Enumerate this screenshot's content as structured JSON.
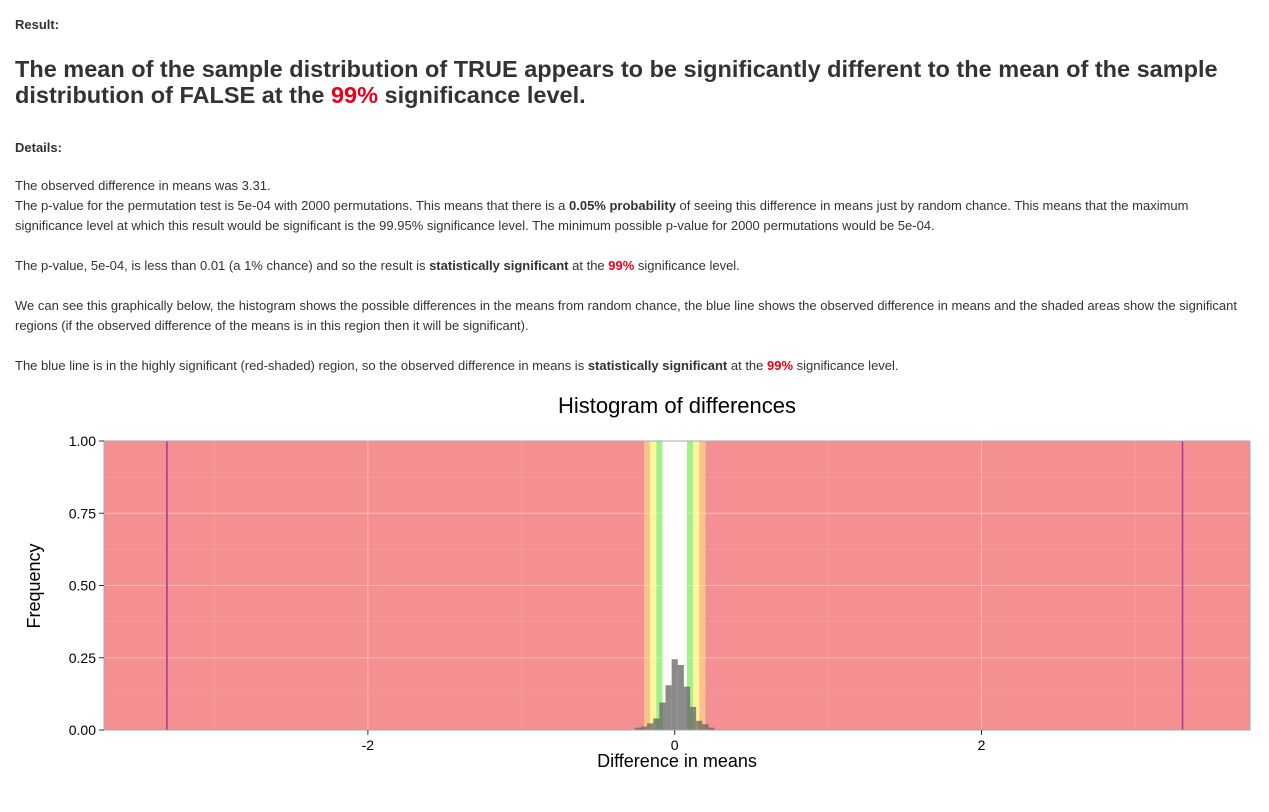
{
  "result": {
    "label": "Result:",
    "headline": {
      "part1": "The mean of the sample distribution of TRUE appears to be ",
      "emphasis": "significantly different",
      "part2": " to the mean of the sample distribution of FALSE at the ",
      "level": "99%",
      "part3": " significance level."
    }
  },
  "details": {
    "label": "Details:",
    "p1": {
      "line1": "The observed difference in means was 3.31.",
      "a": "The p-value for the permutation test is 5e-04 with 2000 permutations. This means that there is a ",
      "b": "0.05% probability",
      "c": " of seeing this difference in means just by random chance. This means that the maximum significance level at which this result would be significant is the 99.95% significance level. The minimum possible p-value for 2000 permutations would be 5e-04."
    },
    "p2": {
      "a": "The p-value, 5e-04, is less than 0.01 (a 1% chance) and so the result is ",
      "b": "statistically significant",
      "c": " at the ",
      "level": "99%",
      "d": " significance level."
    },
    "p3": "We can see this graphically below, the histogram shows the possible differences in the means from random chance, the blue line shows the observed difference in means and the shaded areas show the significant regions (if the observed difference of the means is in this region then it will be significant).",
    "p4": {
      "a": "The blue line is in the highly significant (red-shaded) region, so the observed difference in means is ",
      "b": "statistically significant",
      "c": " at the ",
      "level": "99%",
      "d": " significance level."
    }
  },
  "colors": {
    "accent_red": "#e8001c",
    "region_red": "#f59092",
    "region_orange": "#fdc18a",
    "region_yellow": "#fdf79a",
    "region_green": "#a2f08a",
    "observed_line": "#b0359c",
    "histogram_bar": "#636363"
  },
  "chart_data": {
    "type": "bar",
    "title": "Histogram of differences",
    "xlabel": "Difference in means",
    "ylabel": "Frequency",
    "xlim": [
      -3.72,
      3.75
    ],
    "ylim": [
      0,
      1
    ],
    "x_ticks": [
      -2,
      0,
      2
    ],
    "x_tick_labels": [
      "-2",
      "0",
      "2"
    ],
    "y_ticks": [
      0,
      0.25,
      0.5,
      0.75,
      1
    ],
    "y_tick_labels": [
      "0.00",
      "0.25",
      "0.50",
      "0.75",
      "1.00"
    ],
    "grid": true,
    "bin_width": 0.04,
    "bins": [
      {
        "x": -0.24,
        "freq": 0.008
      },
      {
        "x": -0.2,
        "freq": 0.012
      },
      {
        "x": -0.16,
        "freq": 0.023
      },
      {
        "x": -0.12,
        "freq": 0.04
      },
      {
        "x": -0.08,
        "freq": 0.095
      },
      {
        "x": -0.04,
        "freq": 0.155
      },
      {
        "x": 0.0,
        "freq": 0.245
      },
      {
        "x": 0.04,
        "freq": 0.225
      },
      {
        "x": 0.08,
        "freq": 0.15
      },
      {
        "x": 0.12,
        "freq": 0.08
      },
      {
        "x": 0.16,
        "freq": 0.032
      },
      {
        "x": 0.2,
        "freq": 0.02
      },
      {
        "x": 0.24,
        "freq": 0.008
      }
    ],
    "regions": [
      {
        "name": "red",
        "from": -3.72,
        "to": -0.2
      },
      {
        "name": "orange",
        "from": -0.2,
        "to": -0.16
      },
      {
        "name": "yellow",
        "from": -0.16,
        "to": -0.12
      },
      {
        "name": "green",
        "from": -0.12,
        "to": -0.08
      },
      {
        "name": "green",
        "from": 0.08,
        "to": 0.12
      },
      {
        "name": "yellow",
        "from": 0.12,
        "to": 0.16
      },
      {
        "name": "orange",
        "from": 0.16,
        "to": 0.2
      },
      {
        "name": "red",
        "from": 0.2,
        "to": 3.75
      }
    ],
    "observed_lines": [
      -3.31,
      3.31
    ]
  }
}
